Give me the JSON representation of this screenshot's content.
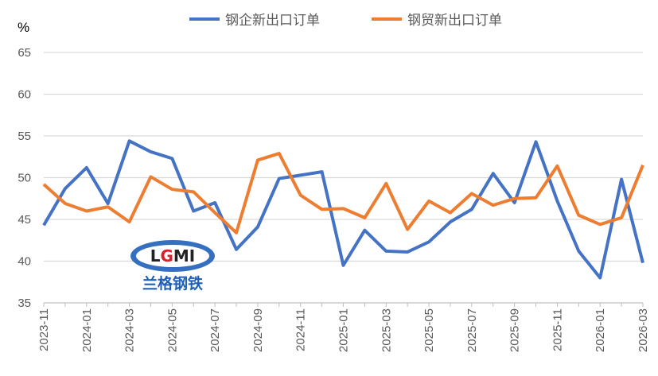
{
  "chart_data": {
    "type": "line",
    "title": "",
    "xlabel": "",
    "ylabel": "%",
    "ylim": [
      35,
      65
    ],
    "yticks": [
      35,
      40,
      45,
      50,
      55,
      60,
      65
    ],
    "grid": true,
    "legend_position": "top",
    "x": [
      "2023-11",
      "2023-12",
      "2024-01",
      "2024-02",
      "2024-03",
      "2024-04",
      "2024-05",
      "2024-06",
      "2024-07",
      "2024-08",
      "2024-09",
      "2024-10",
      "2024-11",
      "2024-12",
      "2025-01",
      "2025-02",
      "2025-03",
      "2025-04",
      "2025-05",
      "2025-06",
      "2025-07",
      "2025-08",
      "2025-09",
      "2025-10",
      "2025-11",
      "2025-12",
      "2026-01",
      "2026-02",
      "2026-03"
    ],
    "xtick_labels": [
      "2023-11",
      "2024-01",
      "2024-03",
      "2024-05",
      "2024-07",
      "2024-09",
      "2024-11",
      "2025-01",
      "2025-03",
      "2025-05",
      "2025-07",
      "2025-09",
      "2025-11",
      "2026-01",
      "2026-03"
    ],
    "series": [
      {
        "name": "钢企新出口订单",
        "color": "#4472C4",
        "values": [
          44.3,
          48.7,
          51.2,
          46.9,
          54.4,
          53.1,
          52.3,
          46.0,
          47.0,
          41.4,
          44.1,
          49.9,
          50.3,
          50.7,
          39.5,
          43.7,
          41.2,
          41.1,
          42.3,
          44.7,
          46.2,
          50.5,
          47.0,
          54.3,
          47.2,
          41.2,
          38.0,
          49.8,
          39.8
        ]
      },
      {
        "name": "钢贸新出口订单",
        "color": "#ED7D31",
        "values": [
          49.2,
          46.9,
          46.0,
          46.5,
          44.7,
          50.1,
          48.6,
          48.3,
          45.8,
          43.4,
          52.1,
          52.9,
          47.9,
          46.2,
          46.3,
          45.2,
          49.3,
          43.8,
          47.2,
          45.8,
          48.1,
          46.7,
          47.5,
          47.6,
          51.4,
          45.5,
          44.4,
          45.2,
          51.5
        ]
      }
    ]
  },
  "watermark": {
    "logo_text": "LGMI",
    "logo_subtext": "兰格钢铁"
  }
}
